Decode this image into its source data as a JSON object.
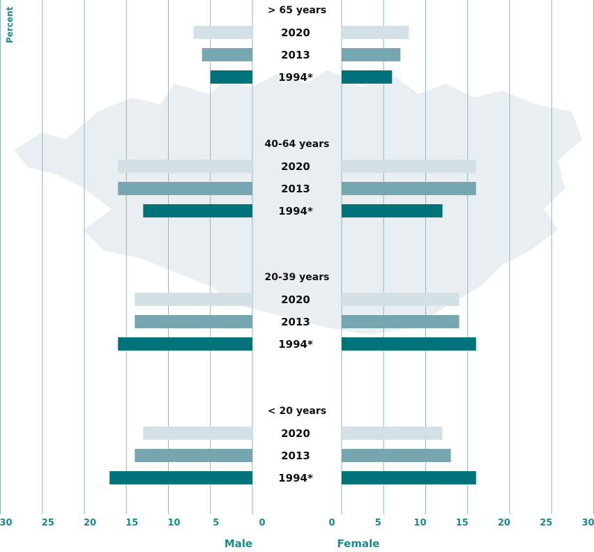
{
  "chart_data": {
    "type": "bar",
    "orientation": "horizontal",
    "layout": "population pyramid",
    "ylabel": "Percent",
    "sides": {
      "left": "Male",
      "right": "Female"
    },
    "xlim": [
      0,
      30
    ],
    "ticks": [
      0,
      5,
      10,
      15,
      20,
      25,
      30
    ],
    "grid": true,
    "background": "light map of Iceland",
    "series_labels": [
      "2020",
      "2013",
      "1994*"
    ],
    "series": [
      {
        "name": "2020",
        "color": "#d3e0e6"
      },
      {
        "name": "2013",
        "color": "#76a7b1"
      },
      {
        "name": "1994*",
        "color": "#00737a"
      }
    ],
    "groups": [
      {
        "label": "> 65 years",
        "male": [
          7,
          6,
          5
        ],
        "female": [
          8,
          7,
          6
        ]
      },
      {
        "label": "40-64 years",
        "male": [
          16,
          16,
          13
        ],
        "female": [
          16,
          16,
          12
        ]
      },
      {
        "label": "20-39 years",
        "male": [
          14,
          14,
          16
        ],
        "female": [
          14,
          14,
          16
        ]
      },
      {
        "label": "< 20 years",
        "male": [
          13,
          14,
          17
        ],
        "female": [
          12,
          13,
          16
        ]
      }
    ],
    "colors": {
      "grid": "#8fb6bd",
      "axis_text": "#1a8a8c",
      "map": "#e8eef1"
    }
  }
}
